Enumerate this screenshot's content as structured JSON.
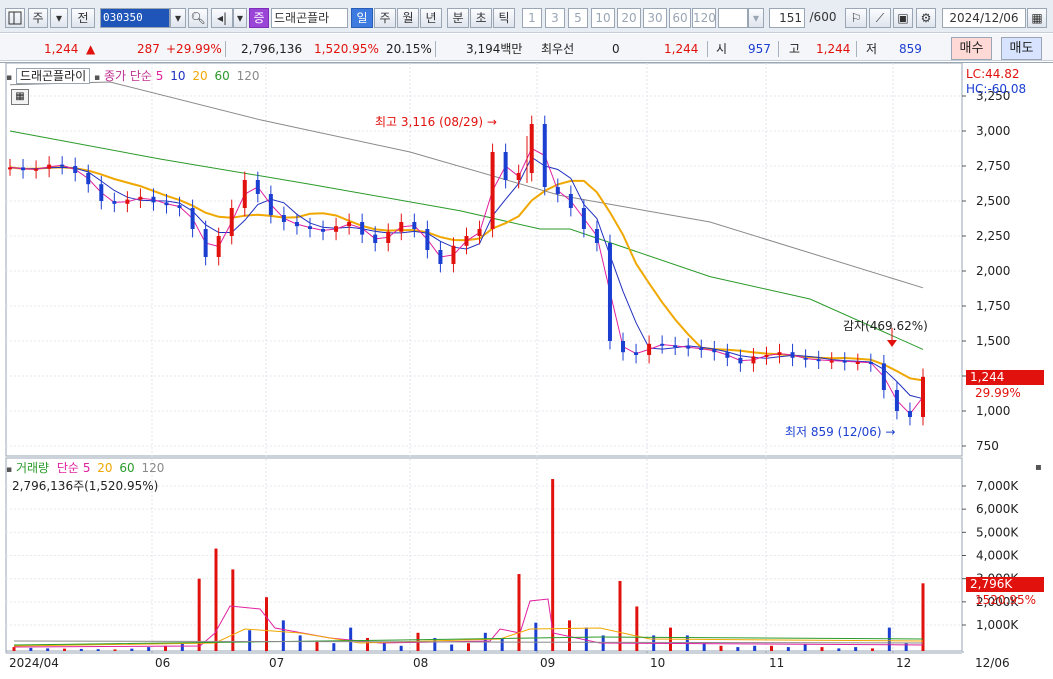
{
  "toolbar": {
    "market": "주",
    "ext": "전",
    "code": "030350",
    "stock_name": "드래곤플라",
    "badge": "증",
    "periods": [
      "일",
      "주",
      "월",
      "년",
      "분",
      "초",
      "틱"
    ],
    "minutes": [
      "1",
      "3",
      "5",
      "10",
      "20",
      "30",
      "60",
      "120"
    ],
    "count": "151",
    "count_total": "/600",
    "date": "2024/12/06"
  },
  "quote": {
    "price": "1,244",
    "change": "287",
    "change_pct": "+29.99%",
    "volume": "2,796,136",
    "volume_ratio": "1,520.95%",
    "turnover": "20.15%",
    "amount": "3,194백만",
    "pref_label": "최우선",
    "pref_value": "0",
    "pref_price": "1,244",
    "open_label": "시",
    "open": "957",
    "high_label": "고",
    "high": "1,244",
    "low_label": "저",
    "low": "859",
    "buy": "매수",
    "sell": "매도"
  },
  "colors": {
    "up": "#e1120e",
    "down": "#1b3fd1",
    "ma5": "#e020a0",
    "ma10": "#2030c0",
    "ma20": "#f0a800",
    "ma60": "#2a9a2a",
    "ma120": "#8a8a8a"
  },
  "price_legend": {
    "name": "드래곤플라이",
    "label": "종가 단순",
    "periods": [
      "5",
      "10",
      "20",
      "60",
      "120"
    ]
  },
  "volume_legend": {
    "label": "거래량",
    "type": "단순",
    "periods": [
      "5",
      "20",
      "60",
      "120"
    ],
    "value": "2,796,136주(1,520.95%)"
  },
  "indicators": {
    "lc": "LC:44.82",
    "hc": "HC:-60.08"
  },
  "annotations": {
    "high": "최고 3,116 (08/29)",
    "low": "최저 859 (12/06)",
    "reduction": "감자(469.62%)"
  },
  "price_tag": {
    "price": "1,244",
    "pct": "29.99%"
  },
  "volume_tag": {
    "value": "2,796K",
    "pct": "1520.95%"
  },
  "chart_data": {
    "type": "line",
    "price_axis": {
      "ticks": [
        750,
        1000,
        1250,
        1500,
        1750,
        2000,
        2250,
        2500,
        2750,
        3000,
        3250
      ],
      "tick_labels": [
        "750",
        "1,000",
        "1,250",
        "1,500",
        "1,750",
        "2,000",
        "2,250",
        "2,500",
        "2,750",
        "3,000",
        "3,250"
      ]
    },
    "volume_axis": {
      "ticks": [
        1000,
        2000,
        3000,
        4000,
        5000,
        6000,
        7000
      ],
      "tick_labels": [
        "1,000K",
        "2,000K",
        "3,000K",
        "4,000K",
        "5,000K",
        "6,000K",
        "7,000K"
      ]
    },
    "x_labels": [
      "2024/04",
      "06",
      "07",
      "08",
      "09",
      "10",
      "11",
      "12",
      "12/06"
    ],
    "close_series": [
      2740,
      2720,
      2730,
      2760,
      2750,
      2700,
      2620,
      2500,
      2480,
      2510,
      2530,
      2490,
      2470,
      2450,
      2300,
      2100,
      2250,
      2450,
      2650,
      2550,
      2400,
      2350,
      2320,
      2300,
      2280,
      2320,
      2350,
      2260,
      2200,
      2280,
      2350,
      2300,
      2150,
      2050,
      2180,
      2250,
      2300,
      2850,
      2650,
      2700,
      3050,
      2600,
      2550,
      2450,
      2300,
      2200,
      1500,
      1420,
      1400,
      1480,
      1470,
      1460,
      1450,
      1440,
      1420,
      1380,
      1340,
      1390,
      1400,
      1420,
      1380,
      1370,
      1360,
      1360,
      1350,
      1350,
      1340,
      1150,
      1000,
      957,
      1244
    ],
    "high": {
      "value": 3116,
      "date": "08/29"
    },
    "low": {
      "value": 859,
      "date": "12/06"
    },
    "last": 1244,
    "volume_series": [
      150,
      120,
      100,
      90,
      80,
      70,
      60,
      90,
      150,
      200,
      300,
      3000,
      4300,
      3400,
      800,
      2200,
      1200,
      600,
      400,
      300,
      900,
      500,
      300,
      200,
      700,
      500,
      250,
      300,
      700,
      500,
      3200,
      1100,
      7300,
      1200,
      900,
      600,
      2900,
      1800,
      600,
      900,
      600,
      300,
      200,
      150,
      200,
      200,
      150,
      250,
      150,
      100,
      150,
      100,
      900,
      300,
      2800
    ]
  }
}
